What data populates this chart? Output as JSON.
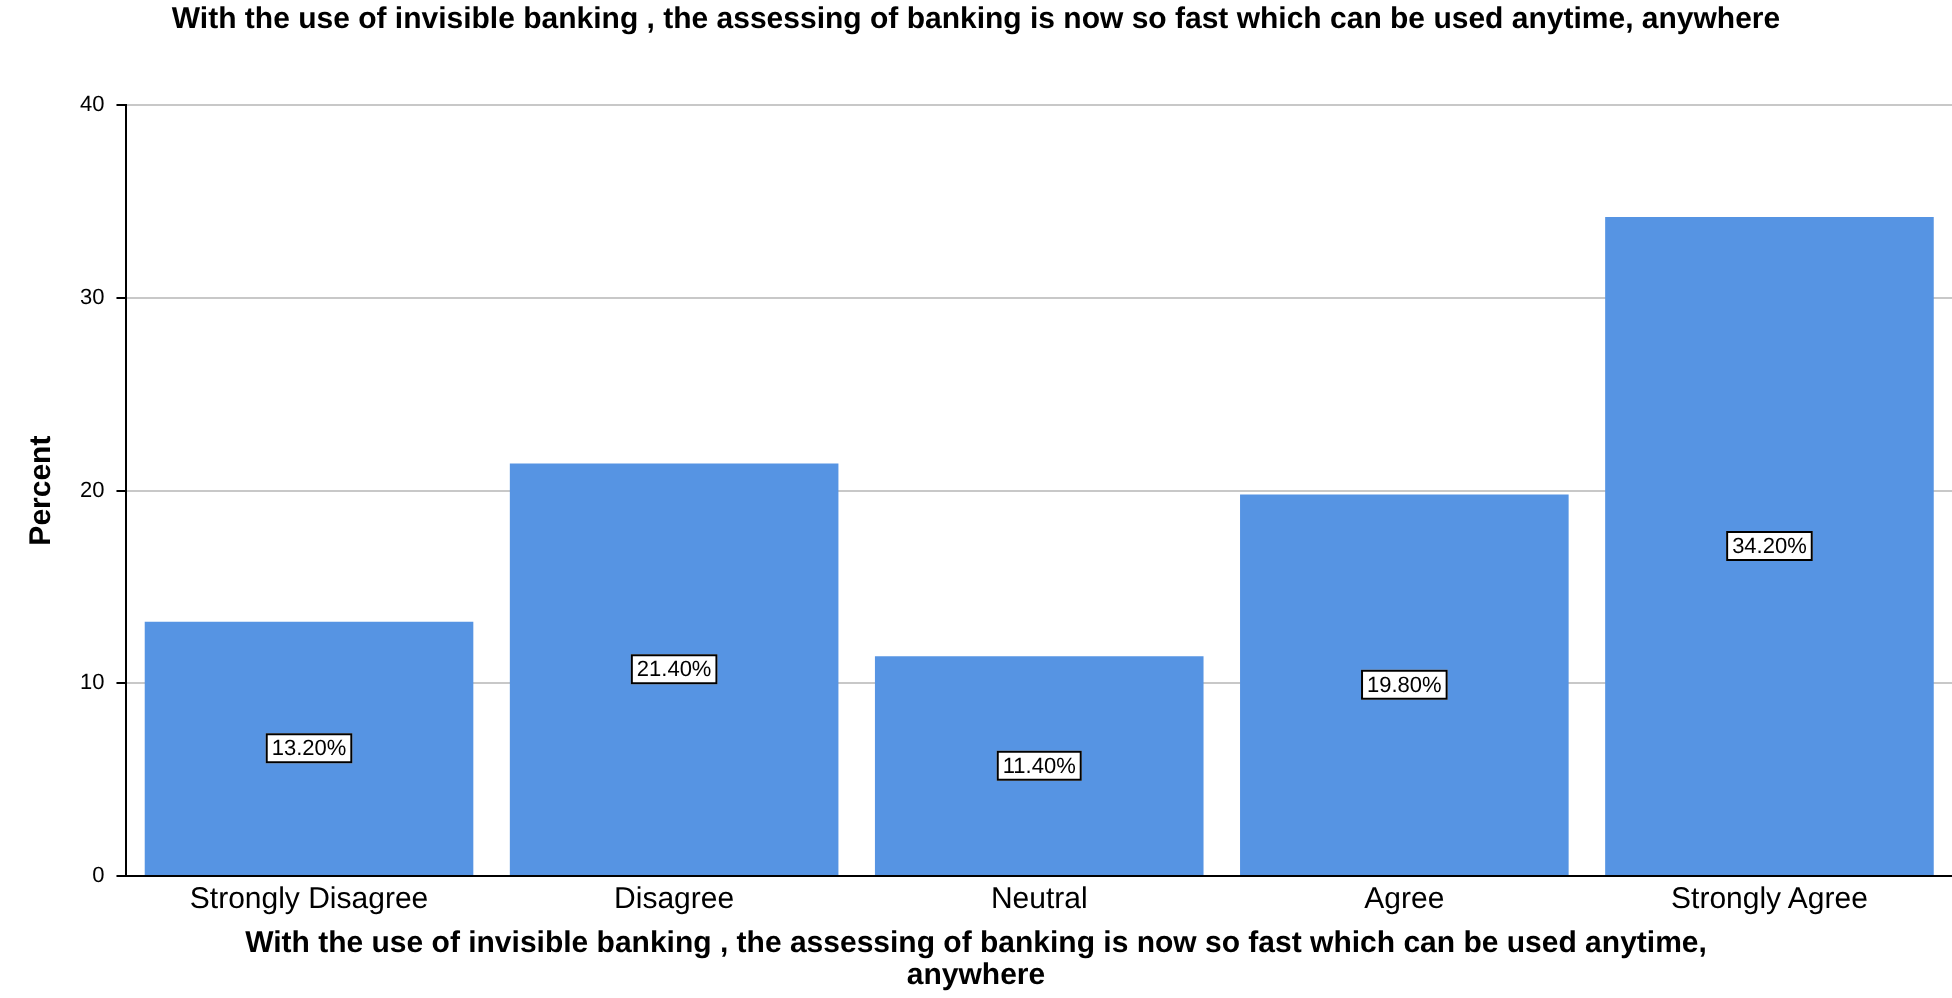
{
  "chart_data": {
    "type": "bar",
    "title": "With the use of invisible banking , the assessing of banking is now so fast which can be used anytime, anywhere",
    "xlabel": "With the use of invisible banking , the assessing of banking is now so fast which can be used anytime, anywhere",
    "ylabel": "Percent",
    "categories": [
      "Strongly Disagree",
      "Disagree",
      "Neutral",
      "Agree",
      "Strongly Agree"
    ],
    "values": [
      13.2,
      21.4,
      11.4,
      19.8,
      34.2
    ],
    "value_labels": [
      "13.20%",
      "21.40%",
      "11.40%",
      "19.80%",
      "34.20%"
    ],
    "color": "#5694e3",
    "ylim": [
      0,
      40
    ],
    "yticks": [
      0,
      10,
      20,
      30,
      40
    ],
    "grid": "y",
    "legend": false
  }
}
